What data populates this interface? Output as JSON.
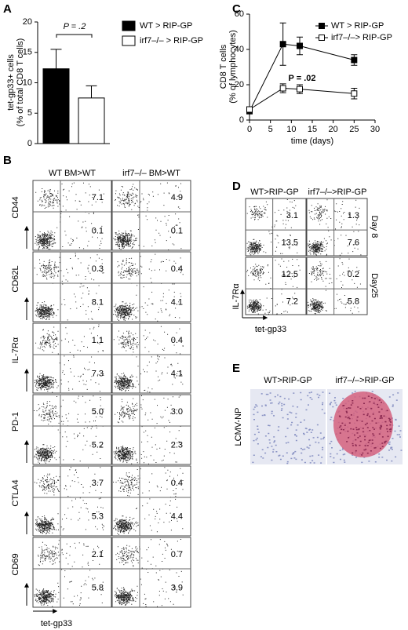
{
  "panel_labels": [
    "A",
    "B",
    "C",
    "D",
    "E"
  ],
  "chart_data": [
    {
      "type": "bar",
      "y_label": [
        "tet-gp33+ cells",
        "(% of total CD8 T cells)"
      ],
      "annotation": "P = .2",
      "ylim": [
        0,
        20
      ],
      "yticks": [
        0,
        5,
        10,
        15,
        20
      ],
      "series": [
        {
          "name": "WT > RIP-GP",
          "color": "#000000",
          "values": [
            12.3
          ],
          "errors": [
            3.2
          ]
        },
        {
          "name": "irf7–/– > RIP-GP",
          "color": "#ffffff",
          "values": [
            7.5
          ],
          "errors": [
            2.0
          ]
        }
      ]
    },
    {
      "type": "line",
      "x_label": "time (days)",
      "y_label": [
        "CD8 T cells",
        "(% of lymphocytes)"
      ],
      "annotation": "P = .02",
      "x": [
        0,
        8,
        12,
        25
      ],
      "xlim": [
        0,
        30
      ],
      "xticks": [
        0,
        5,
        10,
        15,
        20,
        25,
        30
      ],
      "ylim": [
        0,
        60
      ],
      "yticks": [
        0,
        20,
        40,
        60
      ],
      "series": [
        {
          "name": "WT > RIP-GP",
          "color": "#000000",
          "values": [
            5,
            43,
            42,
            34
          ],
          "errors": [
            1,
            12,
            5,
            3
          ]
        },
        {
          "name": "irf7–/–> RIP-GP",
          "color": "#ffffff",
          "values": [
            6,
            18,
            17.5,
            15
          ],
          "errors": [
            1,
            2.5,
            2.5,
            3
          ]
        }
      ]
    }
  ],
  "flow_b": {
    "columns": [
      "WT BM>WT",
      "irf7–/– BM>WT"
    ],
    "x_label": "tet-gp33",
    "rows": [
      {
        "marker": "CD44",
        "values": [
          [
            "7.1",
            "0.1"
          ],
          [
            "4.9",
            "0.1"
          ]
        ]
      },
      {
        "marker": "CD62L",
        "values": [
          [
            "0.3",
            "8.1"
          ],
          [
            "0.4",
            "4.1"
          ]
        ]
      },
      {
        "marker": "IL-7Rα",
        "values": [
          [
            "1.1",
            "7.3"
          ],
          [
            "0.4",
            "4.1"
          ]
        ]
      },
      {
        "marker": "PD-1",
        "values": [
          [
            "5.0",
            "5.2"
          ],
          [
            "3.0",
            "2.3"
          ]
        ]
      },
      {
        "marker": "CTLA4",
        "values": [
          [
            "3.7",
            "5.3"
          ],
          [
            "0.4",
            "4.4"
          ]
        ]
      },
      {
        "marker": "CD69",
        "values": [
          [
            "2.1",
            "5.8"
          ],
          [
            "0.7",
            "3.9"
          ]
        ]
      }
    ]
  },
  "flow_d": {
    "columns": [
      "WT>RIP-GP",
      "irf7–/–>RIP-GP"
    ],
    "y_label": "IL-7Rα",
    "x_label": "tet-gp33",
    "rows": [
      {
        "day": "Day 8",
        "values": [
          [
            "3.1",
            "13.5"
          ],
          [
            "1.3",
            "7.6"
          ]
        ]
      },
      {
        "day": "Day25",
        "values": [
          [
            "12.5",
            "7.2"
          ],
          [
            "0.2",
            "5.8"
          ]
        ]
      }
    ]
  },
  "histology_e": {
    "columns": [
      "WT>RIP-GP",
      "irf7–/–>RIP-GP"
    ],
    "stain": "LCMV-NP"
  }
}
